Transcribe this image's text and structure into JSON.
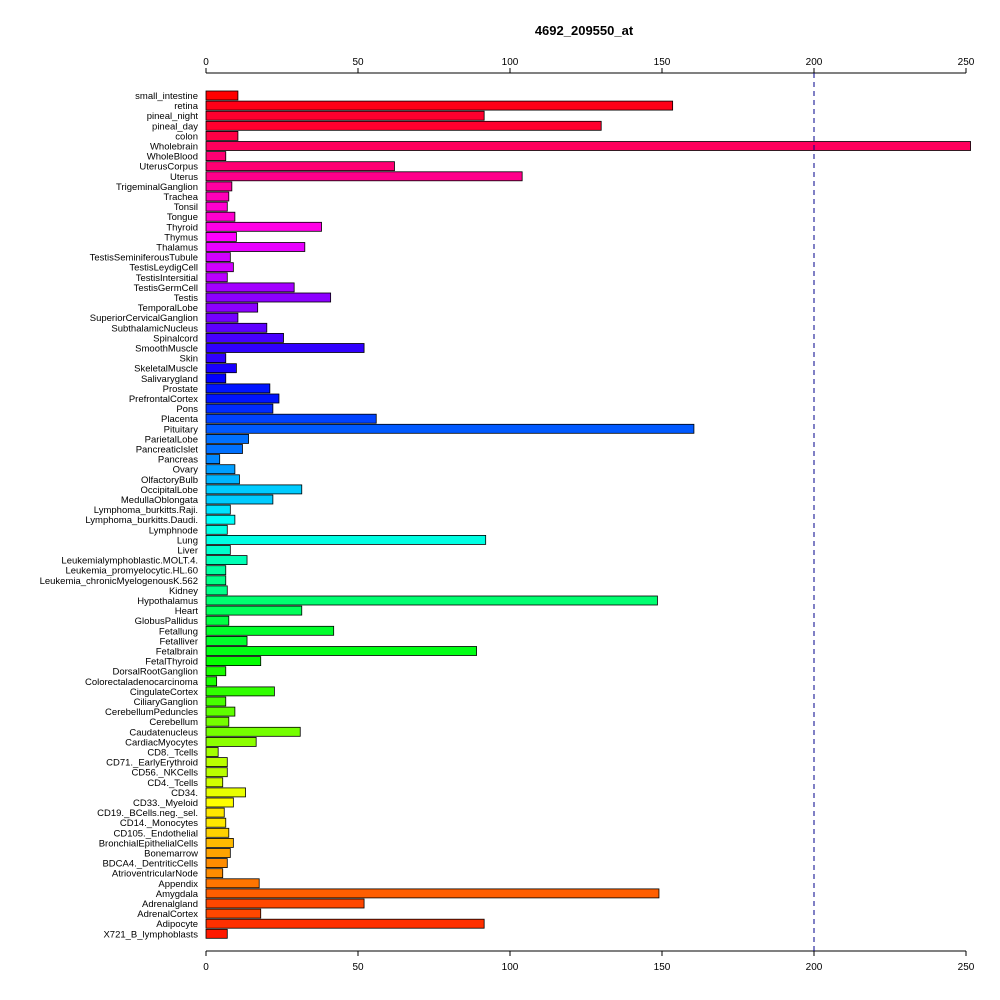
{
  "chart_data": {
    "type": "bar",
    "orientation": "horizontal",
    "title": "4692_209550_at",
    "xlabel": "",
    "ylabel": "",
    "xlim": [
      0,
      250
    ],
    "x_ticks": [
      0,
      50,
      100,
      150,
      200,
      250
    ],
    "x_tick_labels": [
      "0",
      "50",
      "100",
      "150",
      "200",
      "250"
    ],
    "reference_line": 200,
    "reference_line_color": "#00008b",
    "grid": false,
    "legend": "none",
    "categories": [
      "small_intestine",
      "retina",
      "pineal_night",
      "pineal_day",
      "colon",
      "Wholebrain",
      "WholeBlood",
      "UterusCorpus",
      "Uterus",
      "TrigeminalGanglion",
      "Trachea",
      "Tonsil",
      "Tongue",
      "Thyroid",
      "Thymus",
      "Thalamus",
      "TestisSeminiferousTubule",
      "TestisLeydigCell",
      "TestisIntersitial",
      "TestisGermCell",
      "Testis",
      "TemporalLobe",
      "SuperiorCervicalGanglion",
      "SubthalamicNucleus",
      "Spinalcord",
      "SmoothMuscle",
      "Skin",
      "SkeletalMuscle",
      "Salivarygland",
      "Prostate",
      "PrefrontalCortex",
      "Pons",
      "Placenta",
      "Pituitary",
      "ParietalLobe",
      "PancreaticIslet",
      "Pancreas",
      "Ovary",
      "OlfactoryBulb",
      "OccipitalLobe",
      "MedullaOblongata",
      "Lymphoma_burkitts.Raji.",
      "Lymphoma_burkitts.Daudi.",
      "Lymphnode",
      "Lung",
      "Liver",
      "Leukemialymphoblastic.MOLT.4.",
      "Leukemia_promyelocytic.HL.60",
      "Leukemia_chronicMyelogenousK.562",
      "Kidney",
      "Hypothalamus",
      "Heart",
      "GlobusPallidus",
      "Fetallung",
      "Fetalliver",
      "Fetalbrain",
      "FetalThyroid",
      "DorsalRootGanglion",
      "Colorectaladenocarcinoma",
      "CingulateCortex",
      "CiliaryGanglion",
      "CerebellumPeduncles",
      "Cerebellum",
      "Caudatenucleus",
      "CardiacMyocytes",
      "CD8._Tcells",
      "CD71._EarlyErythroid",
      "CD56._NKCells",
      "CD4._Tcells",
      "CD34.",
      "CD33._Myeloid",
      "CD19._BCells.neg._sel.",
      "CD14._Monocytes",
      "CD105._Endothelial",
      "BronchialEpithelialCells",
      "Bonemarrow",
      "BDCA4._DentriticCells",
      "AtrioventricularNode",
      "Appendix",
      "Amygdala",
      "Adrenalgland",
      "AdrenalCortex",
      "Adipocyte",
      "X721_B_lymphoblasts"
    ],
    "values": [
      10.5,
      153.5,
      91.5,
      130,
      10.5,
      251.5,
      6.5,
      62,
      104,
      8.5,
      7.5,
      7,
      9.5,
      38,
      10,
      32.5,
      8,
      9,
      7,
      29,
      41,
      17,
      10.5,
      20,
      25.5,
      52,
      6.5,
      10,
      6.5,
      21,
      24,
      22,
      56,
      160.5,
      14,
      12,
      4.5,
      9.5,
      11,
      31.5,
      22,
      8,
      9.5,
      7,
      92,
      8,
      13.5,
      6.5,
      6.5,
      7,
      148.5,
      31.5,
      7.5,
      42,
      13.5,
      89,
      18,
      6.5,
      3.5,
      22.5,
      6.5,
      9.5,
      7.5,
      31,
      16.5,
      4,
      7,
      7,
      5.5,
      13,
      9,
      6,
      6.5,
      7.5,
      9,
      8,
      7,
      5.5,
      17.5,
      149,
      52,
      18,
      91.5,
      7
    ],
    "colors": [
      "#ff0000",
      "#ff0017",
      "#ff002e",
      "#ff0045",
      "#ff005c",
      "#ff0073",
      "#ff008a",
      "#ff00a1",
      "#ff00b8",
      "#ff00cf",
      "#ff00e6",
      "#ff00fd",
      "#e800ff",
      "#d100ff",
      "#ba00ff",
      "#a300ff",
      "#8c00ff",
      "#7500ff",
      "#5e00ff",
      "#4700ff",
      "#3000ff",
      "#1900ff",
      "#0200ff",
      "#0014ff",
      "#002bff",
      "#0042ff",
      "#0059ff",
      "#0070ff",
      "#0087ff",
      "#009eff",
      "#00b5ff",
      "#00ccff",
      "#00e3ff",
      "#00fffa",
      "#00ffe3",
      "#00ffcc",
      "#00ffb5",
      "#00ff9e",
      "#00ff87",
      "#00ff70",
      "#00ff59",
      "#00ff42",
      "#00ff2b",
      "#00ff14",
      "#02ff00",
      "#19ff00",
      "#30ff00",
      "#47ff00",
      "#5eff00",
      "#75ff00",
      "#8cff00",
      "#a3ff00",
      "#baff00",
      "#d1ff00",
      "#e8ff00",
      "#ffff00",
      "#ffe800",
      "#ffd100",
      "#ffba00",
      "#ffa300",
      "#ff8c00",
      "#ff7500",
      "#ff5e00",
      "#ff4700",
      "#ff3000",
      "#ff1900"
    ]
  }
}
